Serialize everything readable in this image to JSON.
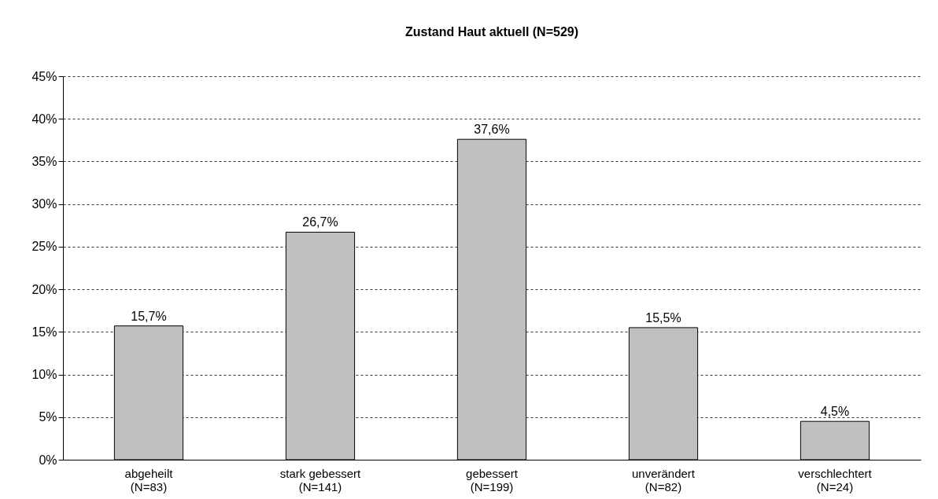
{
  "chart_data": {
    "type": "bar",
    "title": "Zustand Haut aktuell (N=529)",
    "categories": [
      "abgeheilt\n(N=83)",
      "stark gebessert\n(N=141)",
      "gebessert\n(N=199)",
      "unverändert\n(N=82)",
      "verschlechtert\n(N=24)"
    ],
    "values": [
      15.7,
      26.7,
      37.6,
      15.5,
      4.5
    ],
    "value_labels": [
      "15,7%",
      "26,7%",
      "37,6%",
      "15,5%",
      "4,5%"
    ],
    "color": "#c0c0c0",
    "ylim": [
      0,
      45
    ],
    "yticks": [
      {
        "value": 0,
        "label": "0%"
      },
      {
        "value": 5,
        "label": "5%"
      },
      {
        "value": 10,
        "label": "10%"
      },
      {
        "value": 15,
        "label": "15%"
      },
      {
        "value": 20,
        "label": "20%"
      },
      {
        "value": 25,
        "label": "25%"
      },
      {
        "value": 30,
        "label": "30%"
      },
      {
        "value": 35,
        "label": "35%"
      },
      {
        "value": 40,
        "label": "40%"
      },
      {
        "value": 45,
        "label": "45%"
      }
    ],
    "grid": "y",
    "legend": false
  }
}
